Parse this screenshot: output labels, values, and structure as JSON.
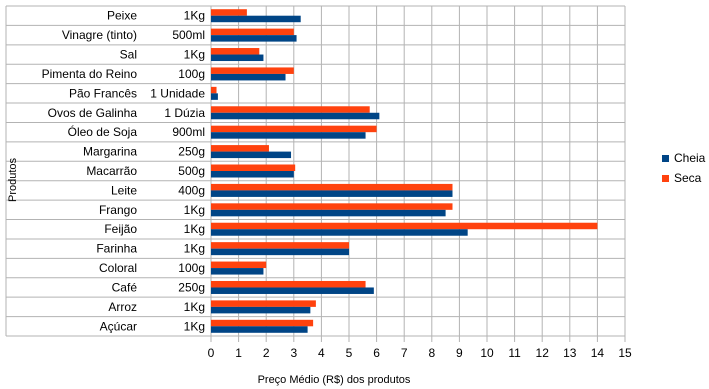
{
  "chart_data": {
    "type": "bar",
    "orientation": "horizontal",
    "xlabel": "Preço Médio (R$) dos produtos",
    "ylabel": "Produtos",
    "xlim": [
      0,
      15
    ],
    "xticks": [
      "0",
      "1",
      "2",
      "3",
      "4",
      "5",
      "6",
      "7",
      "8",
      "9",
      "10",
      "11",
      "12",
      "13",
      "14",
      "15"
    ],
    "grid": true,
    "legend_position": "right",
    "categories": [
      {
        "name": "Peixe",
        "unit": "1Kg"
      },
      {
        "name": "Vinagre (tinto)",
        "unit": "500ml"
      },
      {
        "name": "Sal",
        "unit": "1Kg"
      },
      {
        "name": "Pimenta do Reino",
        "unit": "100g"
      },
      {
        "name": "Pão Francês",
        "unit": "1 Unidade"
      },
      {
        "name": "Ovos de Galinha",
        "unit": "1 Dúzia"
      },
      {
        "name": "Óleo de Soja",
        "unit": "900ml"
      },
      {
        "name": "Margarina",
        "unit": "250g"
      },
      {
        "name": "Macarrão",
        "unit": "500g"
      },
      {
        "name": "Leite",
        "unit": "400g"
      },
      {
        "name": "Frango",
        "unit": "1Kg"
      },
      {
        "name": "Feijão",
        "unit": "1Kg"
      },
      {
        "name": "Farinha",
        "unit": "1Kg"
      },
      {
        "name": "Coloral",
        "unit": "100g"
      },
      {
        "name": "Café",
        "unit": "250g"
      },
      {
        "name": "Arroz",
        "unit": "1Kg"
      },
      {
        "name": "Açúcar",
        "unit": "1Kg"
      }
    ],
    "series": [
      {
        "name": "Seca",
        "color": "#ff420e",
        "values": [
          1.3,
          3.0,
          1.75,
          3.0,
          0.2,
          5.75,
          6.0,
          2.1,
          3.05,
          8.75,
          8.75,
          14.0,
          5.0,
          2.0,
          5.6,
          3.8,
          3.7
        ]
      },
      {
        "name": "Cheia",
        "color": "#004586",
        "values": [
          3.25,
          3.1,
          1.9,
          2.7,
          0.25,
          6.1,
          5.6,
          2.9,
          3.0,
          8.75,
          8.5,
          9.3,
          5.0,
          1.9,
          5.9,
          3.6,
          3.5
        ]
      }
    ],
    "legend": [
      "Cheia",
      "Seca"
    ]
  }
}
